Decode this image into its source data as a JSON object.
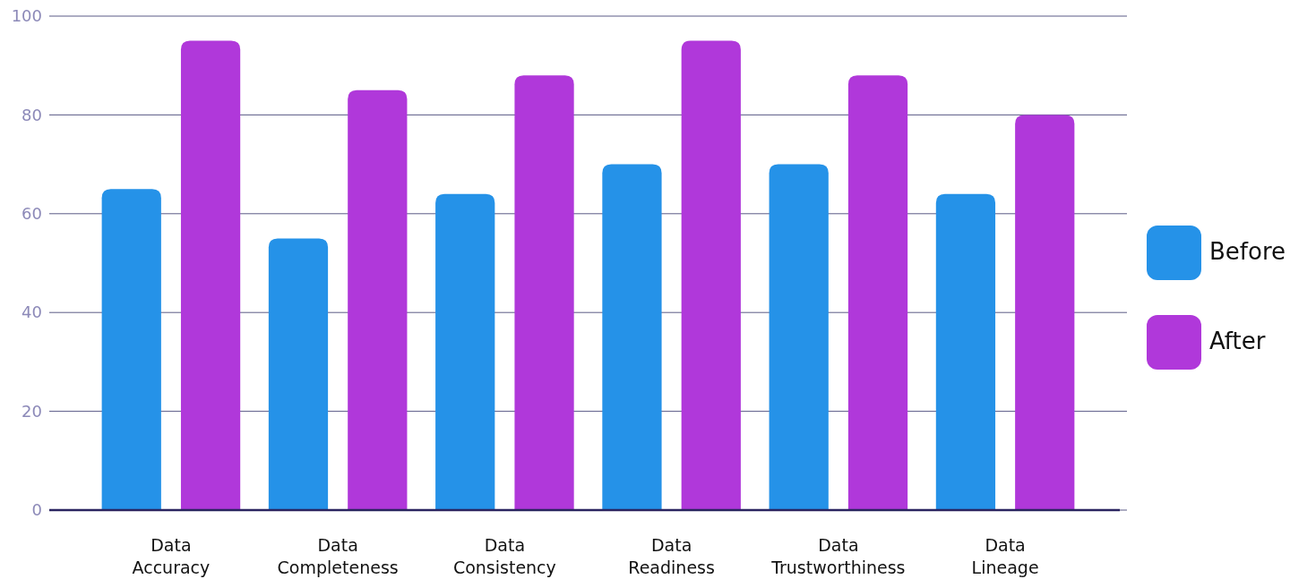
{
  "chart_data": {
    "type": "bar",
    "categories": [
      "Data Accuracy",
      "Data Completeness",
      "Data Consistency",
      "Data Readiness",
      "Data Trustworthiness",
      "Data Lineage"
    ],
    "series": [
      {
        "name": "Before",
        "color": "#2592e8",
        "values": [
          65,
          55,
          64,
          70,
          70,
          64
        ]
      },
      {
        "name": "After",
        "color": "#b038da",
        "values": [
          95,
          85,
          88,
          95,
          88,
          80
        ]
      }
    ],
    "ylim": [
      0,
      100
    ],
    "yticks": [
      0,
      20,
      40,
      60,
      80,
      100
    ],
    "grid": "y",
    "legend": "right"
  }
}
